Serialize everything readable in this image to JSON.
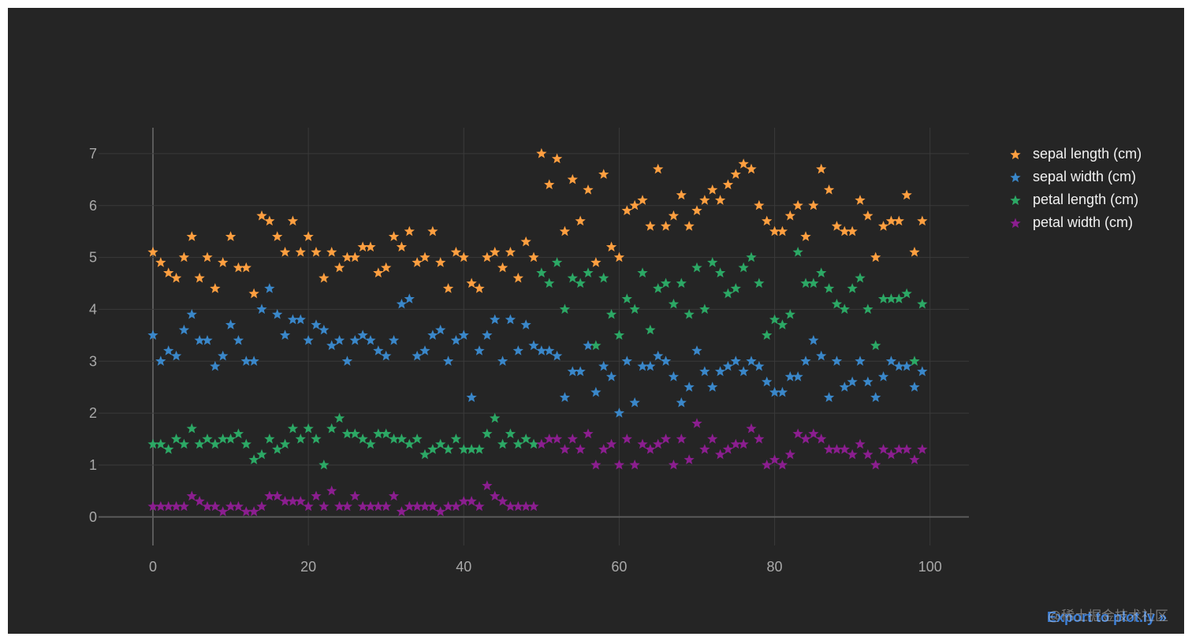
{
  "export_label": "Export to plot.ly »",
  "watermark": "@稀土掘金技术社区",
  "colors": {
    "background": "#252525",
    "grid": "#3a3a3a",
    "axis": "#5a5a5a",
    "tick": "#a9a9a9"
  },
  "chart_data": {
    "type": "scatter",
    "marker": "star",
    "title": "",
    "xlabel": "",
    "ylabel": "",
    "xlim": [
      -7,
      105
    ],
    "ylim": [
      -0.55,
      7.5
    ],
    "x_ticks": [
      0,
      20,
      40,
      60,
      80,
      100
    ],
    "y_ticks": [
      0,
      1,
      2,
      3,
      4,
      5,
      6,
      7
    ],
    "grid": true,
    "legend_position": "right",
    "series": [
      {
        "name": "sepal length (cm)",
        "color": "#ff9f40",
        "values": [
          5.1,
          4.9,
          4.7,
          4.6,
          5.0,
          5.4,
          4.6,
          5.0,
          4.4,
          4.9,
          5.4,
          4.8,
          4.8,
          4.3,
          5.8,
          5.7,
          5.4,
          5.1,
          5.7,
          5.1,
          5.4,
          5.1,
          4.6,
          5.1,
          4.8,
          5.0,
          5.0,
          5.2,
          5.2,
          4.7,
          4.8,
          5.4,
          5.2,
          5.5,
          4.9,
          5.0,
          5.5,
          4.9,
          4.4,
          5.1,
          5.0,
          4.5,
          4.4,
          5.0,
          5.1,
          4.8,
          5.1,
          4.6,
          5.3,
          5.0,
          7.0,
          6.4,
          6.9,
          5.5,
          6.5,
          5.7,
          6.3,
          4.9,
          6.6,
          5.2,
          5.0,
          5.9,
          6.0,
          6.1,
          5.6,
          6.7,
          5.6,
          5.8,
          6.2,
          5.6,
          5.9,
          6.1,
          6.3,
          6.1,
          6.4,
          6.6,
          6.8,
          6.7,
          6.0,
          5.7,
          5.5,
          5.5,
          5.8,
          6.0,
          5.4,
          6.0,
          6.7,
          6.3,
          5.6,
          5.5,
          5.5,
          6.1,
          5.8,
          5.0,
          5.6,
          5.7,
          5.7,
          6.2,
          5.1,
          5.7
        ]
      },
      {
        "name": "sepal width (cm)",
        "color": "#3a87c9",
        "values": [
          3.5,
          3.0,
          3.2,
          3.1,
          3.6,
          3.9,
          3.4,
          3.4,
          2.9,
          3.1,
          3.7,
          3.4,
          3.0,
          3.0,
          4.0,
          4.4,
          3.9,
          3.5,
          3.8,
          3.8,
          3.4,
          3.7,
          3.6,
          3.3,
          3.4,
          3.0,
          3.4,
          3.5,
          3.4,
          3.2,
          3.1,
          3.4,
          4.1,
          4.2,
          3.1,
          3.2,
          3.5,
          3.6,
          3.0,
          3.4,
          3.5,
          2.3,
          3.2,
          3.5,
          3.8,
          3.0,
          3.8,
          3.2,
          3.7,
          3.3,
          3.2,
          3.2,
          3.1,
          2.3,
          2.8,
          2.8,
          3.3,
          2.4,
          2.9,
          2.7,
          2.0,
          3.0,
          2.2,
          2.9,
          2.9,
          3.1,
          3.0,
          2.7,
          2.2,
          2.5,
          3.2,
          2.8,
          2.5,
          2.8,
          2.9,
          3.0,
          2.8,
          3.0,
          2.9,
          2.6,
          2.4,
          2.4,
          2.7,
          2.7,
          3.0,
          3.4,
          3.1,
          2.3,
          3.0,
          2.5,
          2.6,
          3.0,
          2.6,
          2.3,
          2.7,
          3.0,
          2.9,
          2.9,
          2.5,
          2.8
        ]
      },
      {
        "name": "petal length (cm)",
        "color": "#2ca865",
        "values": [
          1.4,
          1.4,
          1.3,
          1.5,
          1.4,
          1.7,
          1.4,
          1.5,
          1.4,
          1.5,
          1.5,
          1.6,
          1.4,
          1.1,
          1.2,
          1.5,
          1.3,
          1.4,
          1.7,
          1.5,
          1.7,
          1.5,
          1.0,
          1.7,
          1.9,
          1.6,
          1.6,
          1.5,
          1.4,
          1.6,
          1.6,
          1.5,
          1.5,
          1.4,
          1.5,
          1.2,
          1.3,
          1.4,
          1.3,
          1.5,
          1.3,
          1.3,
          1.3,
          1.6,
          1.9,
          1.4,
          1.6,
          1.4,
          1.5,
          1.4,
          4.7,
          4.5,
          4.9,
          4.0,
          4.6,
          4.5,
          4.7,
          3.3,
          4.6,
          3.9,
          3.5,
          4.2,
          4.0,
          4.7,
          3.6,
          4.4,
          4.5,
          4.1,
          4.5,
          3.9,
          4.8,
          4.0,
          4.9,
          4.7,
          4.3,
          4.4,
          4.8,
          5.0,
          4.5,
          3.5,
          3.8,
          3.7,
          3.9,
          5.1,
          4.5,
          4.5,
          4.7,
          4.4,
          4.1,
          4.0,
          4.4,
          4.6,
          4.0,
          3.3,
          4.2,
          4.2,
          4.2,
          4.3,
          3.0,
          4.1
        ]
      },
      {
        "name": "petal width (cm)",
        "color": "#8b1e8f",
        "values": [
          0.2,
          0.2,
          0.2,
          0.2,
          0.2,
          0.4,
          0.3,
          0.2,
          0.2,
          0.1,
          0.2,
          0.2,
          0.1,
          0.1,
          0.2,
          0.4,
          0.4,
          0.3,
          0.3,
          0.3,
          0.2,
          0.4,
          0.2,
          0.5,
          0.2,
          0.2,
          0.4,
          0.2,
          0.2,
          0.2,
          0.2,
          0.4,
          0.1,
          0.2,
          0.2,
          0.2,
          0.2,
          0.1,
          0.2,
          0.2,
          0.3,
          0.3,
          0.2,
          0.6,
          0.4,
          0.3,
          0.2,
          0.2,
          0.2,
          0.2,
          1.4,
          1.5,
          1.5,
          1.3,
          1.5,
          1.3,
          1.6,
          1.0,
          1.3,
          1.4,
          1.0,
          1.5,
          1.0,
          1.4,
          1.3,
          1.4,
          1.5,
          1.0,
          1.5,
          1.1,
          1.8,
          1.3,
          1.5,
          1.2,
          1.3,
          1.4,
          1.4,
          1.7,
          1.5,
          1.0,
          1.1,
          1.0,
          1.2,
          1.6,
          1.5,
          1.6,
          1.5,
          1.3,
          1.3,
          1.3,
          1.2,
          1.4,
          1.2,
          1.0,
          1.3,
          1.2,
          1.3,
          1.3,
          1.1,
          1.3
        ]
      }
    ]
  }
}
